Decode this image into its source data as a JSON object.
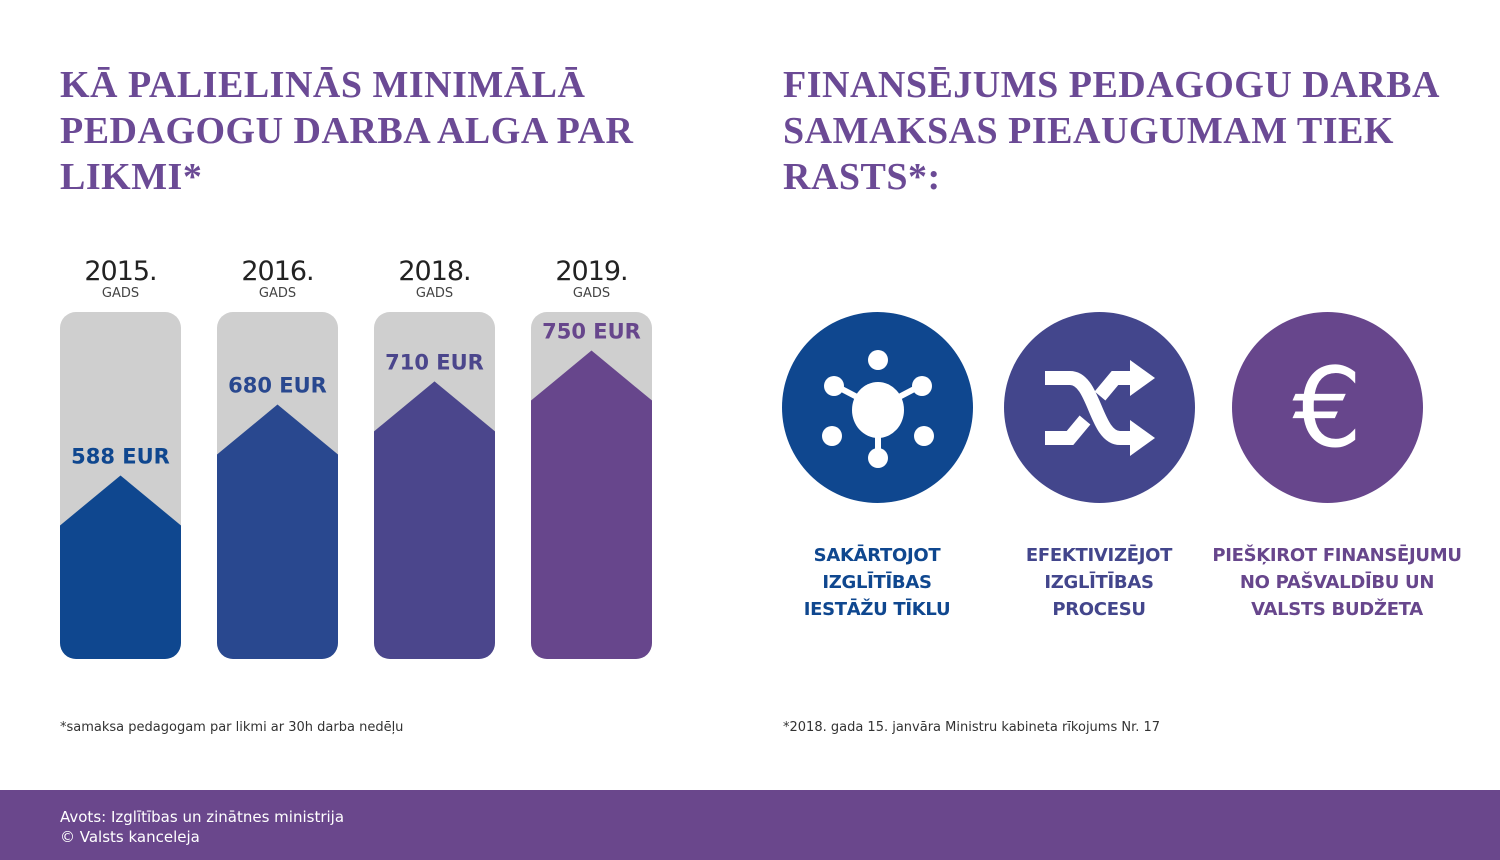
{
  "left": {
    "title": "KĀ PALIELINĀS MINIMĀLĀ PEDAGOGU DARBA ALGA PAR LIKMI*",
    "note": "*samaksa pedagogam par likmi ar 30h darba nedēļu"
  },
  "right": {
    "title": "FINANSĒJUMS PEDAGOGU DARBA SAMAKSAS PIEAUGUMAM TIEK RASTS*:",
    "items": [
      {
        "icon": "network-icon",
        "color": "#0f478f",
        "lines": [
          "SAKĀRTOJOT",
          "IZGLĪTĪBAS",
          "IESTĀŽU TĪKLU"
        ]
      },
      {
        "icon": "shuffle-icon",
        "color": "#43468c",
        "lines": [
          "EFEKTIVIZĒJOT",
          "IZGLĪTĪBAS",
          "PROCESU"
        ]
      },
      {
        "icon": "euro-icon",
        "color": "#67468c",
        "lines": [
          "PIEŠĶIROT FINANSĒJUMU",
          "NO PAŠVALDĪBU UN",
          "VALSTS BUDŽETA"
        ]
      }
    ],
    "note": "*2018. gada 15. janvāra Ministru kabineta rīkojums Nr. 17"
  },
  "footer": {
    "source": "Avots: Izglītības un zinātnes ministrija",
    "copyright": "© Valsts kanceleja"
  },
  "chart_data": {
    "type": "bar",
    "categories": [
      "2015.",
      "2016.",
      "2018.",
      "2019."
    ],
    "category_sublabel": "GADS",
    "values": [
      588,
      680,
      710,
      750
    ],
    "labels": [
      "588 EUR",
      "680 EUR",
      "710 EUR",
      "750 EUR"
    ],
    "unit": "EUR",
    "colors": [
      "#0f478f",
      "#29488f",
      "#4b468c",
      "#67468c"
    ],
    "background_color": "#cfcfcf",
    "ylim": [
      350,
      800
    ],
    "grid": false
  }
}
